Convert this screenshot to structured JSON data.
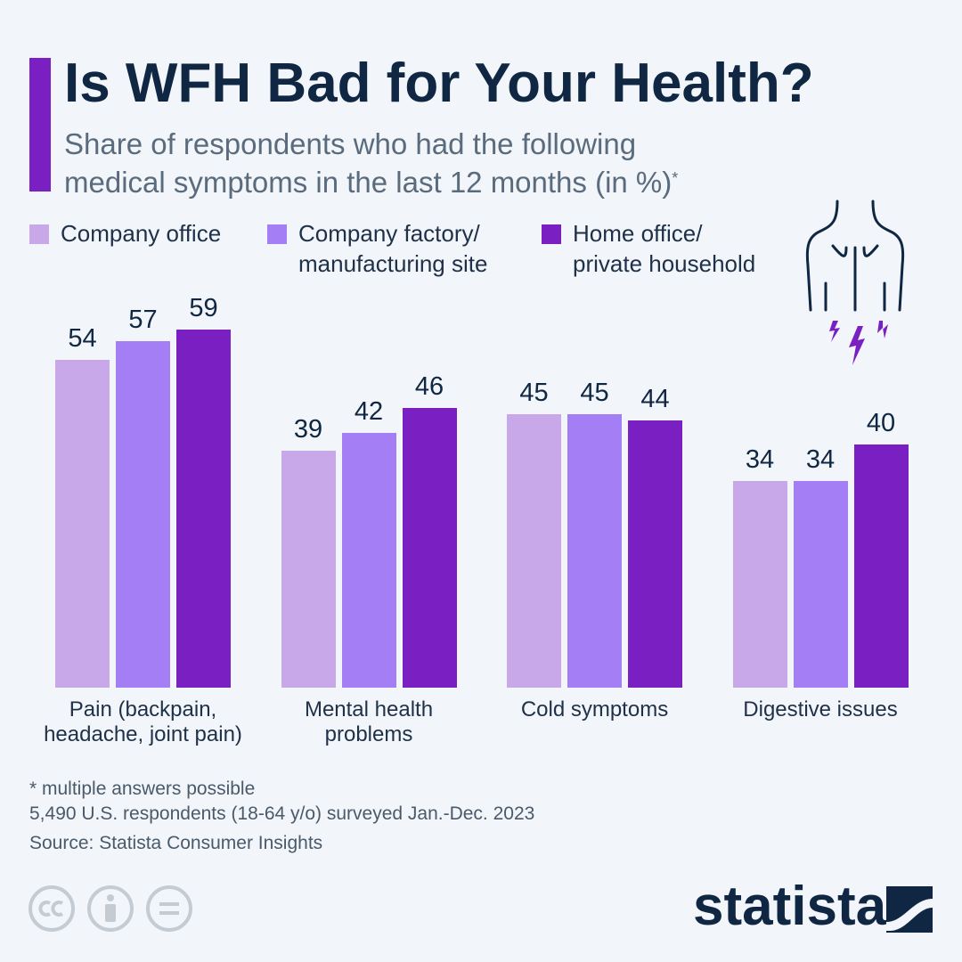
{
  "chart_data": {
    "type": "bar",
    "title": "Is WFH Bad for Your Health?",
    "subtitle": "Share of respondents who had the following\nmedical symptoms in the last 12 months (in %)",
    "subtitle_marker": "*",
    "categories": [
      "Pain (backpain,\nheadache, joint pain)",
      "Mental health\nproblems",
      "Cold symptoms",
      "Digestive issues"
    ],
    "series": [
      {
        "name": "Company office",
        "color": "#c9a8ea",
        "values": [
          54,
          39,
          45,
          34
        ]
      },
      {
        "name": "Company factory/\nmanufacturing site",
        "color": "#a47ef5",
        "values": [
          57,
          42,
          45,
          34
        ]
      },
      {
        "name": "Home office/\nprivate household",
        "color": "#7a1fc1",
        "values": [
          59,
          46,
          44,
          40
        ]
      }
    ],
    "ylim": [
      0,
      60
    ],
    "notes": [
      "* multiple answers possible",
      "5,490 U.S. respondents (18-64 y/o) surveyed Jan.-Dec. 2023",
      "Source: Statista Consumer Insights"
    ],
    "logo": "statista"
  }
}
